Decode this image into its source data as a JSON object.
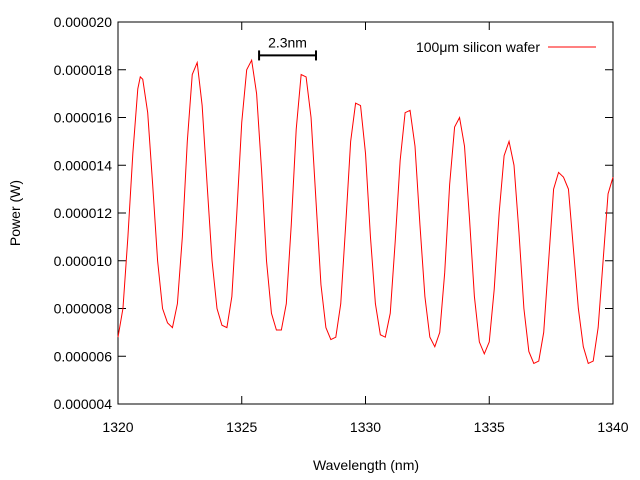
{
  "chart_data": {
    "type": "line",
    "title": "",
    "xlabel": "Wavelength (nm)",
    "ylabel": "Power (W)",
    "xlim": [
      1320,
      1340
    ],
    "ylim": [
      4e-06,
      2e-05
    ],
    "xticks": [
      "1320",
      "1325",
      "1330",
      "1335",
      "1340"
    ],
    "yticks": [
      "0.000004",
      "0.000006",
      "0.000008",
      "0.000010",
      "0.000012",
      "0.000014",
      "0.000016",
      "0.000018",
      "0.000020"
    ],
    "grid": false,
    "legend_position": "top-right",
    "series": [
      {
        "name": "100μm silicon wafer",
        "color": "#ff0000",
        "x": [
          1320.0,
          1320.2,
          1320.4,
          1320.6,
          1320.8,
          1320.9,
          1321.0,
          1321.2,
          1321.4,
          1321.6,
          1321.8,
          1322.0,
          1322.2,
          1322.4,
          1322.6,
          1322.8,
          1323.0,
          1323.2,
          1323.4,
          1323.6,
          1323.8,
          1324.0,
          1324.2,
          1324.4,
          1324.6,
          1324.8,
          1325.0,
          1325.2,
          1325.4,
          1325.6,
          1325.8,
          1326.0,
          1326.2,
          1326.4,
          1326.6,
          1326.8,
          1327.0,
          1327.2,
          1327.4,
          1327.6,
          1327.8,
          1328.0,
          1328.2,
          1328.4,
          1328.6,
          1328.8,
          1329.0,
          1329.2,
          1329.4,
          1329.6,
          1329.8,
          1330.0,
          1330.2,
          1330.4,
          1330.6,
          1330.8,
          1331.0,
          1331.2,
          1331.4,
          1331.6,
          1331.8,
          1332.0,
          1332.2,
          1332.4,
          1332.6,
          1332.8,
          1333.0,
          1333.2,
          1333.4,
          1333.6,
          1333.8,
          1334.0,
          1334.2,
          1334.4,
          1334.6,
          1334.8,
          1335.0,
          1335.2,
          1335.4,
          1335.6,
          1335.8,
          1336.0,
          1336.2,
          1336.4,
          1336.6,
          1336.8,
          1337.0,
          1337.2,
          1337.4,
          1337.6,
          1337.8,
          1338.0,
          1338.2,
          1338.4,
          1338.6,
          1338.8,
          1339.0,
          1339.2,
          1339.4,
          1339.6,
          1339.8,
          1340.0
        ],
        "y": [
          6.8e-06,
          8e-06,
          1.1e-05,
          1.45e-05,
          1.72e-05,
          1.77e-05,
          1.76e-05,
          1.62e-05,
          1.32e-05,
          1e-05,
          8e-06,
          7.4e-06,
          7.2e-06,
          8.2e-06,
          1.1e-05,
          1.5e-05,
          1.78e-05,
          1.83e-05,
          1.65e-05,
          1.32e-05,
          1e-05,
          8e-06,
          7.3e-06,
          7.2e-06,
          8.5e-06,
          1.2e-05,
          1.58e-05,
          1.8e-05,
          1.84e-05,
          1.7e-05,
          1.38e-05,
          1e-05,
          7.8e-06,
          7.1e-06,
          7.1e-06,
          8.2e-06,
          1.15e-05,
          1.55e-05,
          1.78e-05,
          1.77e-05,
          1.6e-05,
          1.25e-05,
          9e-06,
          7.2e-06,
          6.7e-06,
          6.8e-06,
          8.2e-06,
          1.15e-05,
          1.5e-05,
          1.66e-05,
          1.65e-05,
          1.45e-05,
          1.1e-05,
          8.2e-06,
          6.9e-06,
          6.8e-06,
          7.8e-06,
          1.08e-05,
          1.42e-05,
          1.62e-05,
          1.63e-05,
          1.48e-05,
          1.15e-05,
          8.5e-06,
          6.8e-06,
          6.4e-06,
          7e-06,
          9.5e-06,
          1.32e-05,
          1.56e-05,
          1.6e-05,
          1.48e-05,
          1.18e-05,
          8.5e-06,
          6.6e-06,
          6.1e-06,
          6.6e-06,
          8.8e-06,
          1.2e-05,
          1.44e-05,
          1.5e-05,
          1.4e-05,
          1.12e-05,
          8e-06,
          6.2e-06,
          5.7e-06,
          5.8e-06,
          7e-06,
          1e-05,
          1.3e-05,
          1.37e-05,
          1.35e-05,
          1.3e-05,
          1.05e-05,
          8e-06,
          6.4e-06,
          5.7e-06,
          5.8e-06,
          7.2e-06,
          1e-05,
          1.28e-05,
          1.35e-05
        ]
      }
    ],
    "annotations": [
      {
        "label": "2.3nm",
        "x_start": 1325.7,
        "x_end": 1328.0,
        "y": 1.86e-05
      }
    ]
  }
}
